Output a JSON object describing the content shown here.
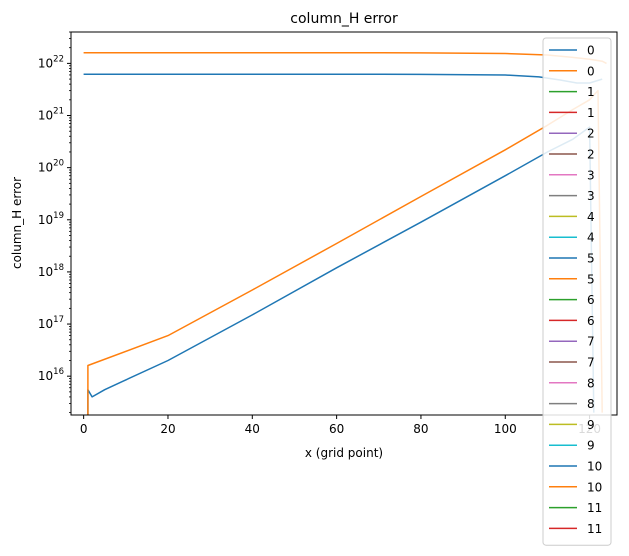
{
  "chart_data": {
    "type": "line",
    "title": "column_H error",
    "xlabel": "x (grid point)",
    "ylabel": "column_H error",
    "y_scale": "log",
    "xlim": [
      -3,
      126.5
    ],
    "ylim": [
      1800000000000000.0,
      4e+22
    ],
    "x_ticks": [
      {
        "value": 0,
        "label": "0"
      },
      {
        "value": 20,
        "label": "20"
      },
      {
        "value": 40,
        "label": "40"
      },
      {
        "value": 60,
        "label": "60"
      },
      {
        "value": 80,
        "label": "80"
      },
      {
        "value": 100,
        "label": "100"
      },
      {
        "value": 120,
        "label": "120"
      }
    ],
    "y_ticks": [
      {
        "value": 1e+16,
        "base": "10",
        "exp": "16"
      },
      {
        "value": 1e+17,
        "base": "10",
        "exp": "17"
      },
      {
        "value": 1e+18,
        "base": "10",
        "exp": "18"
      },
      {
        "value": 1e+19,
        "base": "10",
        "exp": "19"
      },
      {
        "value": 1e+20,
        "base": "10",
        "exp": "20"
      },
      {
        "value": 1e+21,
        "base": "10",
        "exp": "21"
      },
      {
        "value": 1e+22,
        "base": "10",
        "exp": "22"
      }
    ],
    "grid": false,
    "legend_position": "right, extending below the axes",
    "series": [
      {
        "name": "0",
        "color": "#1f77b4",
        "points": [
          [
            0,
            6.2e+21
          ],
          [
            20,
            6.2e+21
          ],
          [
            40,
            6.2e+21
          ],
          [
            60,
            6.2e+21
          ],
          [
            80,
            6.15e+21
          ],
          [
            100,
            6e+21
          ],
          [
            108,
            5.5e+21
          ],
          [
            113,
            4.8e+21
          ],
          [
            117,
            4.2e+21
          ],
          [
            120,
            4.2e+21
          ],
          [
            123,
            5e+21
          ]
        ]
      },
      {
        "name": "0",
        "color": "#ff7f0e",
        "points": [
          [
            0,
            1.6e+22
          ],
          [
            20,
            1.6e+22
          ],
          [
            40,
            1.6e+22
          ],
          [
            60,
            1.6e+22
          ],
          [
            80,
            1.59e+22
          ],
          [
            100,
            1.55e+22
          ],
          [
            110,
            1.45e+22
          ],
          [
            116,
            1.3e+22
          ],
          [
            120,
            1.2e+22
          ],
          [
            123,
            1.1e+22
          ],
          [
            124,
            1e+22
          ]
        ]
      },
      {
        "name": "1",
        "color": "#2ca02c",
        "points": []
      },
      {
        "name": "1",
        "color": "#d62728",
        "points": []
      },
      {
        "name": "2",
        "color": "#9467bd",
        "points": []
      },
      {
        "name": "2",
        "color": "#8c564b",
        "points": []
      },
      {
        "name": "3",
        "color": "#e377c2",
        "points": []
      },
      {
        "name": "3",
        "color": "#7f7f7f",
        "points": []
      },
      {
        "name": "4",
        "color": "#bcbd22",
        "points": []
      },
      {
        "name": "4",
        "color": "#17becf",
        "points": []
      },
      {
        "name": "5",
        "color": "#1f77b4",
        "points": [
          [
            1,
            1800000000000000.0
          ],
          [
            1,
            5500000000000000.0
          ],
          [
            2,
            4000000000000000.0
          ],
          [
            5,
            5500000000000000.0
          ],
          [
            10,
            8500000000000000.0
          ],
          [
            20,
            2e+16
          ],
          [
            40,
            1.5e+17
          ],
          [
            60,
            1.2e+18
          ],
          [
            80,
            9e+18
          ],
          [
            100,
            7e+19
          ],
          [
            110,
            2e+20
          ],
          [
            116,
            3.5e+20
          ],
          [
            120,
            6e+20
          ],
          [
            121,
            2000000000000000.0
          ]
        ]
      },
      {
        "name": "5",
        "color": "#ff7f0e",
        "points": [
          [
            1,
            1800000000000000.0
          ],
          [
            1,
            1.6e+16
          ],
          [
            20,
            6e+16
          ],
          [
            40,
            4.5e+17
          ],
          [
            60,
            3.5e+18
          ],
          [
            80,
            2.8e+19
          ],
          [
            100,
            2.2e+20
          ],
          [
            110,
            6.5e+20
          ],
          [
            116,
            1.3e+21
          ],
          [
            120,
            2e+21
          ],
          [
            122,
            3e+21
          ],
          [
            123,
            2000000000000000.0
          ]
        ]
      },
      {
        "name": "6",
        "color": "#2ca02c",
        "points": []
      },
      {
        "name": "6",
        "color": "#d62728",
        "points": []
      },
      {
        "name": "7",
        "color": "#9467bd",
        "points": []
      },
      {
        "name": "7",
        "color": "#8c564b",
        "points": []
      },
      {
        "name": "8",
        "color": "#e377c2",
        "points": []
      },
      {
        "name": "8",
        "color": "#7f7f7f",
        "points": []
      },
      {
        "name": "9",
        "color": "#bcbd22",
        "points": []
      },
      {
        "name": "9",
        "color": "#17becf",
        "points": []
      },
      {
        "name": "10",
        "color": "#1f77b4",
        "points": []
      },
      {
        "name": "10",
        "color": "#ff7f0e",
        "points": []
      },
      {
        "name": "11",
        "color": "#2ca02c",
        "points": []
      },
      {
        "name": "11",
        "color": "#d62728",
        "points": []
      }
    ]
  }
}
